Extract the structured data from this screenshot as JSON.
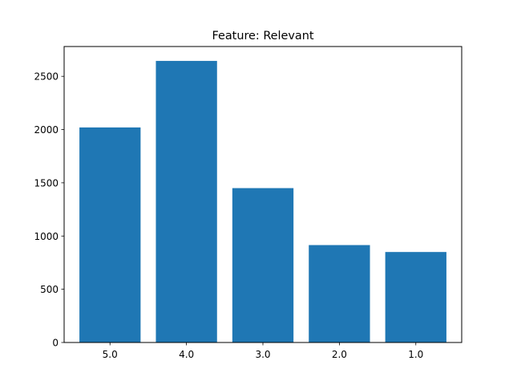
{
  "chart_data": {
    "type": "bar",
    "title": "Feature: Relevant",
    "xlabel": "",
    "ylabel": "",
    "categories": [
      "5.0",
      "4.0",
      "3.0",
      "2.0",
      "1.0"
    ],
    "values": [
      2020,
      2645,
      1450,
      915,
      850
    ],
    "ylim": [
      0,
      2780
    ],
    "yticks": [
      0,
      500,
      1000,
      1500,
      2000,
      2500
    ],
    "grid": false,
    "bar_color": "#1f77b4"
  }
}
